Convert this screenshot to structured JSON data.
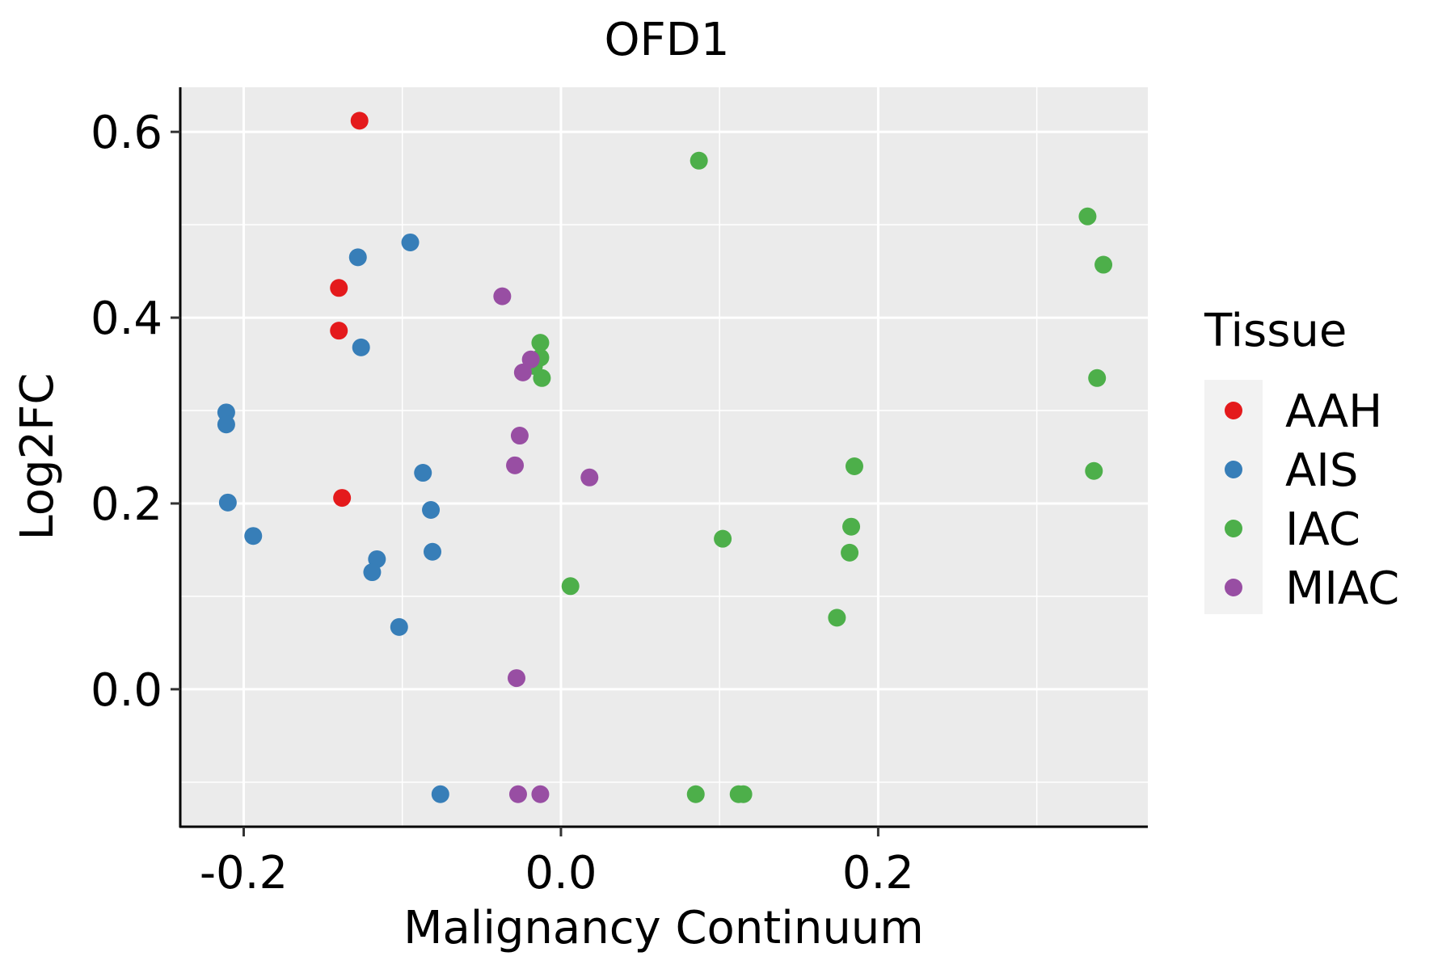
{
  "chart_data": {
    "type": "scatter",
    "title": "OFD1",
    "xlabel": "Malignancy Continuum",
    "ylabel": "Log2FC",
    "xlim": [
      -0.24,
      0.37
    ],
    "ylim": [
      -0.148,
      0.648
    ],
    "x_ticks": [
      -0.2,
      0.0,
      0.2
    ],
    "x_tick_labels": [
      "-0.2",
      "0.0",
      "0.2"
    ],
    "y_ticks": [
      0.0,
      0.2,
      0.4,
      0.6
    ],
    "y_tick_labels": [
      "0.0",
      "0.2",
      "0.4",
      "0.6"
    ],
    "grid": true,
    "legend": {
      "title": "Tissue",
      "position": "right"
    },
    "series": [
      {
        "name": "AAH",
        "color": "#E41A1C",
        "points": [
          {
            "x": -0.127,
            "y": 0.612
          },
          {
            "x": -0.14,
            "y": 0.432
          },
          {
            "x": -0.14,
            "y": 0.386
          },
          {
            "x": -0.138,
            "y": 0.206
          }
        ]
      },
      {
        "name": "AIS",
        "color": "#377EB8",
        "points": [
          {
            "x": -0.095,
            "y": 0.481
          },
          {
            "x": -0.128,
            "y": 0.465
          },
          {
            "x": -0.126,
            "y": 0.368
          },
          {
            "x": -0.211,
            "y": 0.298
          },
          {
            "x": -0.211,
            "y": 0.285
          },
          {
            "x": -0.21,
            "y": 0.201
          },
          {
            "x": -0.194,
            "y": 0.165
          },
          {
            "x": -0.087,
            "y": 0.233
          },
          {
            "x": -0.082,
            "y": 0.193
          },
          {
            "x": -0.116,
            "y": 0.14
          },
          {
            "x": -0.119,
            "y": 0.126
          },
          {
            "x": -0.081,
            "y": 0.148
          },
          {
            "x": -0.102,
            "y": 0.067
          },
          {
            "x": -0.076,
            "y": -0.113
          }
        ]
      },
      {
        "name": "IAC",
        "color": "#4DAF4A",
        "points": [
          {
            "x": 0.087,
            "y": 0.569
          },
          {
            "x": 0.332,
            "y": 0.509
          },
          {
            "x": 0.342,
            "y": 0.457
          },
          {
            "x": 0.338,
            "y": 0.335
          },
          {
            "x": 0.336,
            "y": 0.235
          },
          {
            "x": -0.013,
            "y": 0.373
          },
          {
            "x": -0.013,
            "y": 0.357
          },
          {
            "x": -0.017,
            "y": 0.348
          },
          {
            "x": -0.012,
            "y": 0.335
          },
          {
            "x": 0.185,
            "y": 0.24
          },
          {
            "x": 0.183,
            "y": 0.175
          },
          {
            "x": 0.182,
            "y": 0.147
          },
          {
            "x": 0.102,
            "y": 0.162
          },
          {
            "x": 0.006,
            "y": 0.111
          },
          {
            "x": 0.174,
            "y": 0.077
          },
          {
            "x": 0.085,
            "y": -0.113
          },
          {
            "x": 0.112,
            "y": -0.113
          },
          {
            "x": 0.115,
            "y": -0.113
          }
        ]
      },
      {
        "name": "MIAC",
        "color": "#984EA3",
        "points": [
          {
            "x": -0.037,
            "y": 0.423
          },
          {
            "x": -0.019,
            "y": 0.355
          },
          {
            "x": -0.024,
            "y": 0.341
          },
          {
            "x": -0.026,
            "y": 0.273
          },
          {
            "x": -0.029,
            "y": 0.241
          },
          {
            "x": 0.018,
            "y": 0.228
          },
          {
            "x": -0.028,
            "y": 0.012
          },
          {
            "x": -0.027,
            "y": -0.113
          },
          {
            "x": -0.013,
            "y": -0.113
          }
        ]
      }
    ]
  }
}
